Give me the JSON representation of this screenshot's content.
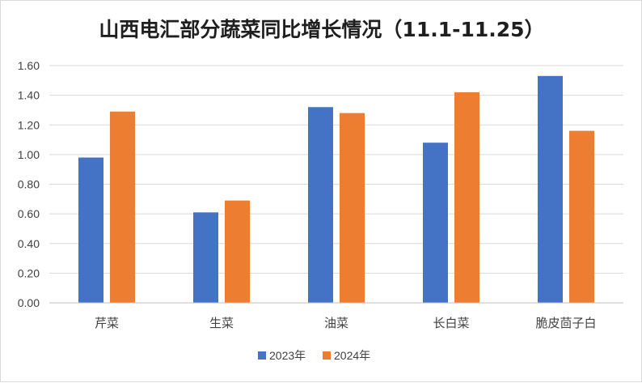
{
  "chart_data": {
    "type": "bar",
    "title": "山西电汇部分蔬菜同比增长情况（11.1-11.25）",
    "categories": [
      "芹菜",
      "生菜",
      "油菜",
      "长白菜",
      "脆皮茴子白"
    ],
    "series": [
      {
        "name": "2023年",
        "color": "#4472c4",
        "values": [
          0.98,
          0.61,
          1.32,
          1.08,
          1.53
        ]
      },
      {
        "name": "2024年",
        "color": "#ed7d31",
        "values": [
          1.29,
          0.69,
          1.28,
          1.42,
          1.16
        ]
      }
    ],
    "ylim": [
      0,
      1.6
    ],
    "yticks": [
      "0.00",
      "0.20",
      "0.40",
      "0.60",
      "0.80",
      "1.00",
      "1.20",
      "1.40",
      "1.60"
    ],
    "grid": true,
    "legend_position": "bottom",
    "xlabel": "",
    "ylabel": ""
  }
}
